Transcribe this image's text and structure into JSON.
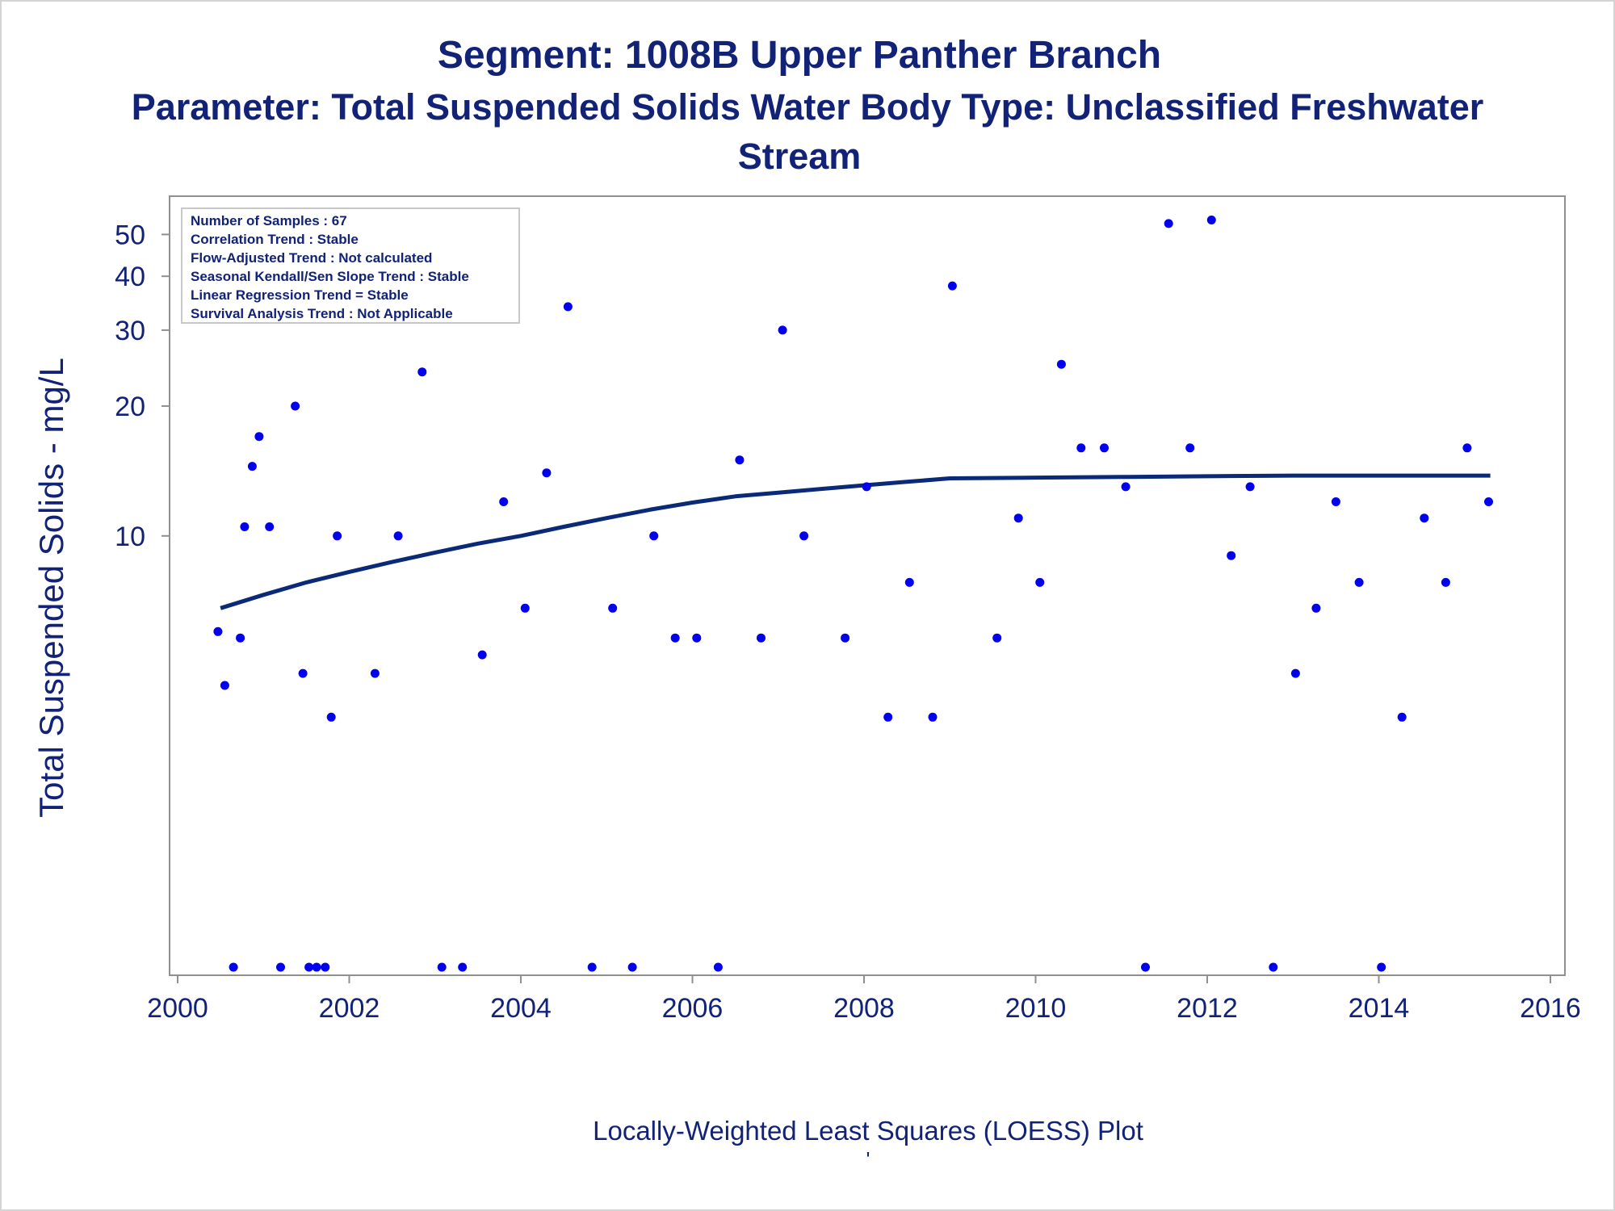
{
  "chart_data": {
    "type": "scatter",
    "title": "Segment: 1008B  Upper Panther Branch",
    "subtitle_line1": "Parameter: Total Suspended Solids   Water Body Type: Unclassified Freshwater",
    "subtitle_line2": "Stream",
    "xlabel": "Locally-Weighted Least Squares (LOESS) Plot",
    "xlabel_mark": "'",
    "ylabel": "Total Suspended Solids - mg/L",
    "y_scale": "log",
    "xlim": [
      2000,
      2016
    ],
    "ylim": [
      1.0,
      57
    ],
    "x_ticks": [
      2000,
      2002,
      2004,
      2006,
      2008,
      2010,
      2012,
      2014,
      2016
    ],
    "y_ticks": [
      10,
      20,
      30,
      40,
      50
    ],
    "grid": false,
    "stats_box": {
      "placement": "top-left",
      "lines": [
        "Number of Samples : 67",
        "Correlation Trend : Stable",
        "Flow-Adjusted Trend : Not calculated",
        "Seasonal Kendall/Sen Slope Trend : Stable",
        "Linear Regression Trend = Stable",
        "Survival Analysis Trend : Not Applicable"
      ]
    },
    "colors": {
      "points": "#0000ee",
      "loess_line": "#0a2a77",
      "text": "#112277",
      "axis": "#909090"
    },
    "series": [
      {
        "kind": "scatter",
        "points": [
          {
            "x": 2000.47,
            "y": 6
          },
          {
            "x": 2000.55,
            "y": 4.5
          },
          {
            "x": 2000.65,
            "y": 1
          },
          {
            "x": 2000.73,
            "y": 5.8
          },
          {
            "x": 2000.78,
            "y": 10.5
          },
          {
            "x": 2000.87,
            "y": 14.5
          },
          {
            "x": 2000.95,
            "y": 17
          },
          {
            "x": 2001.07,
            "y": 10.5
          },
          {
            "x": 2001.2,
            "y": 1
          },
          {
            "x": 2001.37,
            "y": 20
          },
          {
            "x": 2001.46,
            "y": 4.8
          },
          {
            "x": 2001.53,
            "y": 1
          },
          {
            "x": 2001.62,
            "y": 1
          },
          {
            "x": 2001.72,
            "y": 1
          },
          {
            "x": 2001.79,
            "y": 3.8
          },
          {
            "x": 2001.86,
            "y": 10
          },
          {
            "x": 2002.3,
            "y": 4.8
          },
          {
            "x": 2002.57,
            "y": 10
          },
          {
            "x": 2002.85,
            "y": 24
          },
          {
            "x": 2003.08,
            "y": 1
          },
          {
            "x": 2003.32,
            "y": 1
          },
          {
            "x": 2003.55,
            "y": 5.3
          },
          {
            "x": 2003.8,
            "y": 12
          },
          {
            "x": 2004.05,
            "y": 6.8
          },
          {
            "x": 2004.3,
            "y": 14
          },
          {
            "x": 2004.55,
            "y": 34
          },
          {
            "x": 2004.83,
            "y": 1
          },
          {
            "x": 2005.07,
            "y": 6.8
          },
          {
            "x": 2005.3,
            "y": 1
          },
          {
            "x": 2005.55,
            "y": 10
          },
          {
            "x": 2005.8,
            "y": 5.8
          },
          {
            "x": 2006.05,
            "y": 5.8
          },
          {
            "x": 2006.3,
            "y": 1
          },
          {
            "x": 2006.55,
            "y": 15
          },
          {
            "x": 2006.8,
            "y": 5.8
          },
          {
            "x": 2007.05,
            "y": 30
          },
          {
            "x": 2007.3,
            "y": 10
          },
          {
            "x": 2007.78,
            "y": 5.8
          },
          {
            "x": 2008.03,
            "y": 13
          },
          {
            "x": 2008.28,
            "y": 3.8
          },
          {
            "x": 2008.53,
            "y": 7.8
          },
          {
            "x": 2008.8,
            "y": 3.8
          },
          {
            "x": 2009.03,
            "y": 38
          },
          {
            "x": 2009.55,
            "y": 5.8
          },
          {
            "x": 2009.8,
            "y": 11
          },
          {
            "x": 2010.05,
            "y": 7.8
          },
          {
            "x": 2010.3,
            "y": 25
          },
          {
            "x": 2010.53,
            "y": 16
          },
          {
            "x": 2010.8,
            "y": 16
          },
          {
            "x": 2011.05,
            "y": 13
          },
          {
            "x": 2011.28,
            "y": 1
          },
          {
            "x": 2011.55,
            "y": 53
          },
          {
            "x": 2011.8,
            "y": 16
          },
          {
            "x": 2012.05,
            "y": 54
          },
          {
            "x": 2012.28,
            "y": 9
          },
          {
            "x": 2012.5,
            "y": 13
          },
          {
            "x": 2012.77,
            "y": 1
          },
          {
            "x": 2013.03,
            "y": 4.8
          },
          {
            "x": 2013.27,
            "y": 6.8
          },
          {
            "x": 2013.5,
            "y": 12
          },
          {
            "x": 2013.77,
            "y": 7.8
          },
          {
            "x": 2014.03,
            "y": 1
          },
          {
            "x": 2014.27,
            "y": 3.8
          },
          {
            "x": 2014.53,
            "y": 11
          },
          {
            "x": 2014.78,
            "y": 7.8
          },
          {
            "x": 2015.03,
            "y": 16
          },
          {
            "x": 2015.28,
            "y": 12
          }
        ]
      },
      {
        "kind": "line",
        "points": [
          {
            "x": 2000.5,
            "y": 6.8
          },
          {
            "x": 2001.0,
            "y": 7.3
          },
          {
            "x": 2001.5,
            "y": 7.8
          },
          {
            "x": 2002.0,
            "y": 8.25
          },
          {
            "x": 2002.5,
            "y": 8.7
          },
          {
            "x": 2003.0,
            "y": 9.15
          },
          {
            "x": 2003.5,
            "y": 9.6
          },
          {
            "x": 2004.0,
            "y": 10.0
          },
          {
            "x": 2004.5,
            "y": 10.5
          },
          {
            "x": 2005.0,
            "y": 11.0
          },
          {
            "x": 2005.5,
            "y": 11.5
          },
          {
            "x": 2006.0,
            "y": 11.95
          },
          {
            "x": 2006.5,
            "y": 12.35
          },
          {
            "x": 2007.0,
            "y": 12.6
          },
          {
            "x": 2007.5,
            "y": 12.85
          },
          {
            "x": 2008.0,
            "y": 13.1
          },
          {
            "x": 2008.5,
            "y": 13.35
          },
          {
            "x": 2009.0,
            "y": 13.6
          },
          {
            "x": 2010.0,
            "y": 13.65
          },
          {
            "x": 2011.0,
            "y": 13.7
          },
          {
            "x": 2012.0,
            "y": 13.75
          },
          {
            "x": 2013.0,
            "y": 13.8
          },
          {
            "x": 2014.0,
            "y": 13.8
          },
          {
            "x": 2015.3,
            "y": 13.8
          }
        ]
      }
    ]
  }
}
